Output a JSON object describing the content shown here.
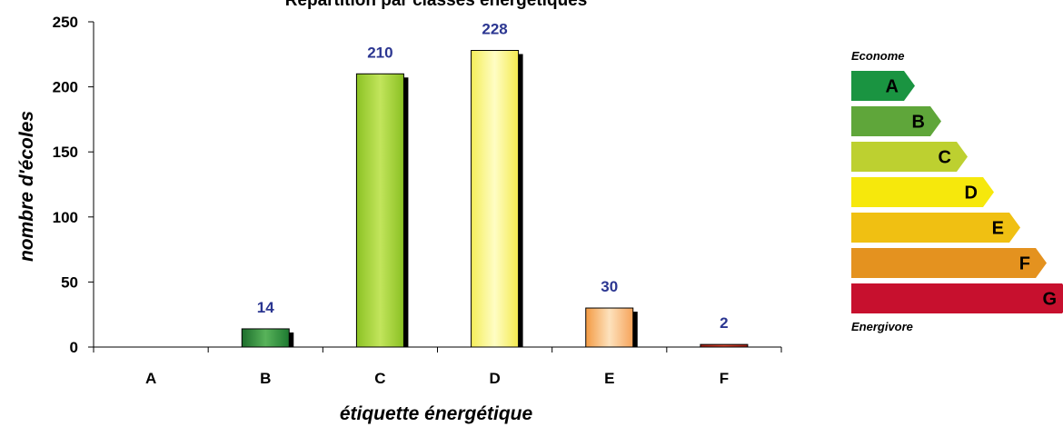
{
  "chart_data": {
    "type": "bar",
    "title": "Répartition par classes énergétiques",
    "xlabel": "étiquette énergétique",
    "ylabel": "nombre d'écoles",
    "categories": [
      "A",
      "B",
      "C",
      "D",
      "E",
      "F"
    ],
    "values": [
      0,
      14,
      210,
      228,
      30,
      2
    ],
    "data_labels": [
      "",
      "14",
      "210",
      "228",
      "30",
      "2"
    ],
    "y_ticks": [
      "0",
      "50",
      "100",
      "150",
      "200",
      "250"
    ],
    "ylim": [
      0,
      250
    ],
    "grid": false,
    "bar_colors": [
      "#1d8a3f",
      "#2f9a3c",
      "#9fcf2a",
      "#f6f06a",
      "#f6a04a",
      "#b52a1e"
    ]
  },
  "legend": {
    "top_caption": "Econome",
    "bottom_caption": "Energivore",
    "classes": [
      {
        "letter": "A",
        "color": "#1a9441"
      },
      {
        "letter": "B",
        "color": "#5fa63a"
      },
      {
        "letter": "C",
        "color": "#bdd030"
      },
      {
        "letter": "D",
        "color": "#f6e80c"
      },
      {
        "letter": "E",
        "color": "#f0c012"
      },
      {
        "letter": "F",
        "color": "#e4921f"
      },
      {
        "letter": "G",
        "color": "#c7102e"
      }
    ]
  }
}
